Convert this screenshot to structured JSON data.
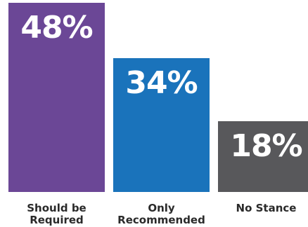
{
  "chart_data": {
    "type": "bar",
    "categories": [
      "Should be Required",
      "Only Recommended",
      "No Stance"
    ],
    "category_lines": [
      [
        "Should be",
        "Required"
      ],
      [
        "Only",
        "Recommended"
      ],
      [
        "No Stance"
      ]
    ],
    "values": [
      48,
      34,
      18
    ],
    "value_labels": [
      "48%",
      "34%",
      "18%"
    ],
    "colors": [
      "#6b4796",
      "#1a73bb",
      "#58585b"
    ],
    "title": "",
    "xlabel": "",
    "ylabel": "",
    "ylim": [
      0,
      48
    ],
    "grid": false,
    "legend": "none"
  }
}
